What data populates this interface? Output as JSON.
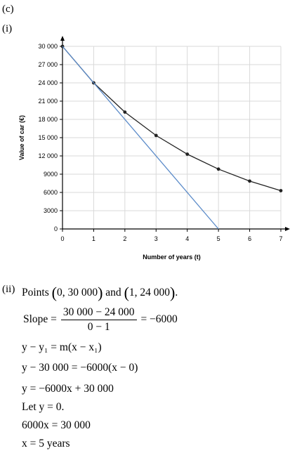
{
  "labels": {
    "part": "(c)",
    "sub_i": "(i)",
    "sub_ii": "(ii)"
  },
  "chart_data": {
    "type": "line",
    "xlabel": "Number of years (t)",
    "ylabel": "Value of car (€)",
    "x_ticks": [
      "0",
      "1",
      "2",
      "3",
      "4",
      "5",
      "6",
      "7"
    ],
    "y_ticks": [
      "0",
      "3000",
      "6000",
      "9000",
      "12 000",
      "15 000",
      "18 000",
      "21 000",
      "24 000",
      "27 000",
      "30 000"
    ],
    "xlim": [
      0,
      7
    ],
    "ylim": [
      0,
      30000
    ],
    "grid": true,
    "series": [
      {
        "color": "#222222",
        "marker": "dot",
        "x": [
          0,
          1,
          2,
          3,
          4,
          5,
          6,
          7
        ],
        "y": [
          30000,
          24000,
          19200,
          15360,
          12288,
          9830,
          7864,
          6291
        ]
      },
      {
        "color": "#5b8bc9",
        "marker": "none",
        "x": [
          0,
          1,
          5
        ],
        "y": [
          30000,
          24000,
          0
        ]
      }
    ]
  },
  "working": {
    "points_text": "Points",
    "p1": "0, 30 000",
    "and": "and",
    "p2": "1, 24 000",
    "slope_lhs": "Slope =",
    "slope_num": "30 000 − 24 000",
    "slope_den": "0 − 1",
    "slope_rhs": "= −6000",
    "eq_line_1": "y − y₁ = m(x − x₁)",
    "eq_line_2": "y − 30 000 = −6000(x − 0)",
    "eq_line_3": "y = −6000x + 30 000",
    "eq_line_4": "Let y = 0.",
    "eq_line_5": "6000x = 30 000",
    "eq_line_6": "x = 5 years"
  }
}
